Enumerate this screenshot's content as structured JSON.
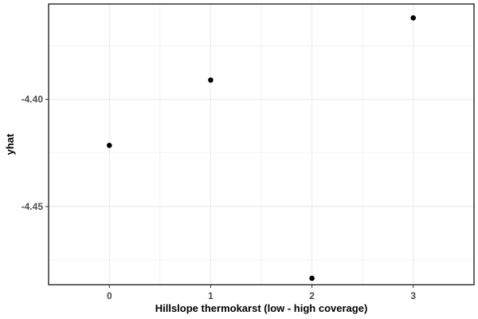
{
  "chart_data": {
    "type": "scatter",
    "title": "",
    "xlabel": "Hillslope thermokarst (low - high coverage)",
    "ylabel": "yhat",
    "x_ticks": [
      "0",
      "1",
      "2",
      "3"
    ],
    "y_ticks": [
      "-4.40",
      "-4.45"
    ],
    "xlim": [
      -0.6,
      3.6
    ],
    "ylim": [
      -4.4865,
      -4.3555
    ],
    "series": [
      {
        "points": [
          {
            "x": 0,
            "y": -4.4215
          },
          {
            "x": 1,
            "y": -4.391
          },
          {
            "x": 2,
            "y": -4.4835
          },
          {
            "x": 3,
            "y": -4.362
          }
        ]
      }
    ],
    "grid": true,
    "point_color": "#000000",
    "grid_color": "#ebebeb",
    "panel_border_color": "#000000"
  }
}
